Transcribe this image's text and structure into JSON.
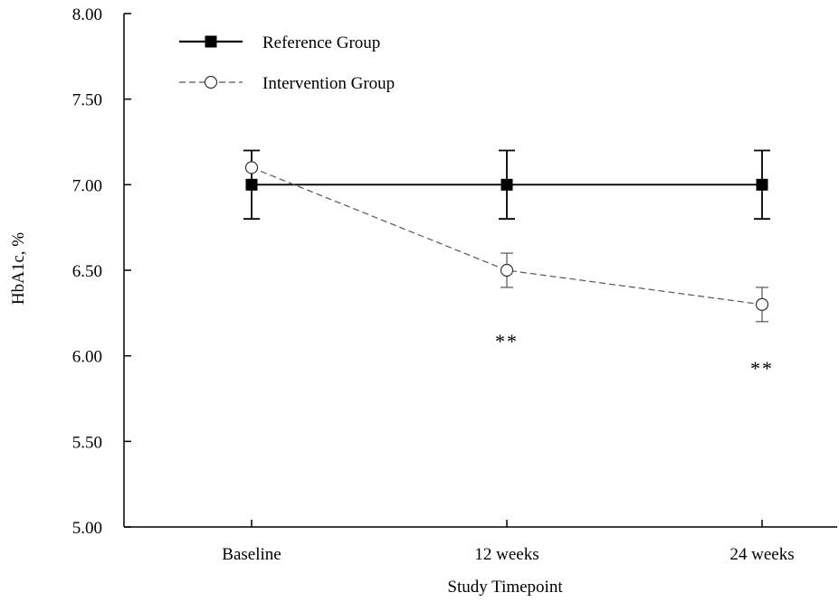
{
  "chart_data": {
    "type": "line",
    "title": "",
    "xlabel": "Study Timepoint",
    "ylabel": "HbA1c, %",
    "categories": [
      "Baseline",
      "12 weeks",
      "24 weeks"
    ],
    "ylim": [
      5.0,
      8.0
    ],
    "yticks": [
      "5.00",
      "5.50",
      "6.00",
      "6.50",
      "7.00",
      "7.50",
      "8.00"
    ],
    "grid": false,
    "legend_position": "top-left",
    "series": [
      {
        "name": "Reference Group",
        "values": [
          7.0,
          7.0,
          7.0
        ],
        "error": [
          0.2,
          0.2,
          0.2
        ],
        "marker": "filled-square",
        "line": "solid",
        "color": "#000000"
      },
      {
        "name": "Intervention Group",
        "values": [
          7.1,
          6.5,
          6.3
        ],
        "error": [
          0.0,
          0.1,
          0.1
        ],
        "marker": "open-circle",
        "line": "dashed",
        "color": "#555555"
      }
    ],
    "annotations": [
      {
        "category": "12 weeks",
        "y": 6.11,
        "text": "**"
      },
      {
        "category": "24 weeks",
        "y": 5.95,
        "text": "**"
      }
    ]
  }
}
